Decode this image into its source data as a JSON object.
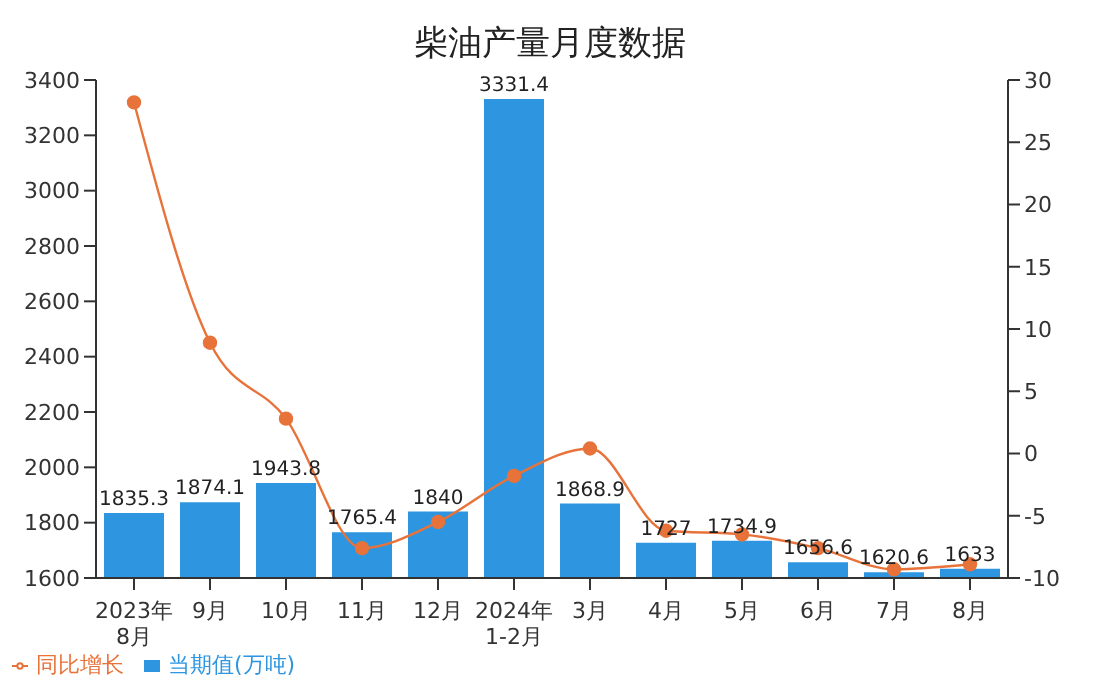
{
  "chart_data": {
    "type": "bar",
    "title": "柴油产量月度数据",
    "categories": [
      "2023年\n8月",
      "9月",
      "10月",
      "11月",
      "12月",
      "2024年\n1-2月",
      "3月",
      "4月",
      "5月",
      "6月",
      "7月",
      "8月"
    ],
    "series": [
      {
        "name": "当期值(万吨)",
        "color": "#2e96e0",
        "values": [
          1835.3,
          1874.1,
          1943.8,
          1765.4,
          1840,
          3331.4,
          1868.9,
          1727,
          1734.9,
          1656.6,
          1620.6,
          1633
        ],
        "value_labels": [
          "1835.3",
          "1874.1",
          "1943.8",
          "1765.4",
          "1840",
          "3331.4",
          "1868.9",
          "1727",
          "1734.9",
          "1656.6",
          "1620.6",
          "1633"
        ]
      },
      {
        "name": "同比增长",
        "type": "line",
        "axis": "y2",
        "color": "#e8733a",
        "marker": "circle",
        "values": [
          28.2,
          8.9,
          2.8,
          -7.6,
          -5.5,
          -1.8,
          0.4,
          -6.2,
          -6.5,
          -7.6,
          -9.3,
          -8.9
        ]
      }
    ],
    "ylim": [
      1600,
      3400
    ],
    "yticks": [
      1600,
      1800,
      2000,
      2200,
      2400,
      2600,
      2800,
      3000,
      3200,
      3400
    ],
    "y2lim": [
      -10,
      30
    ],
    "y2ticks": [
      -10,
      -5,
      0,
      5,
      10,
      15,
      20,
      25,
      30
    ],
    "grid": false,
    "legend": "bottom left"
  }
}
